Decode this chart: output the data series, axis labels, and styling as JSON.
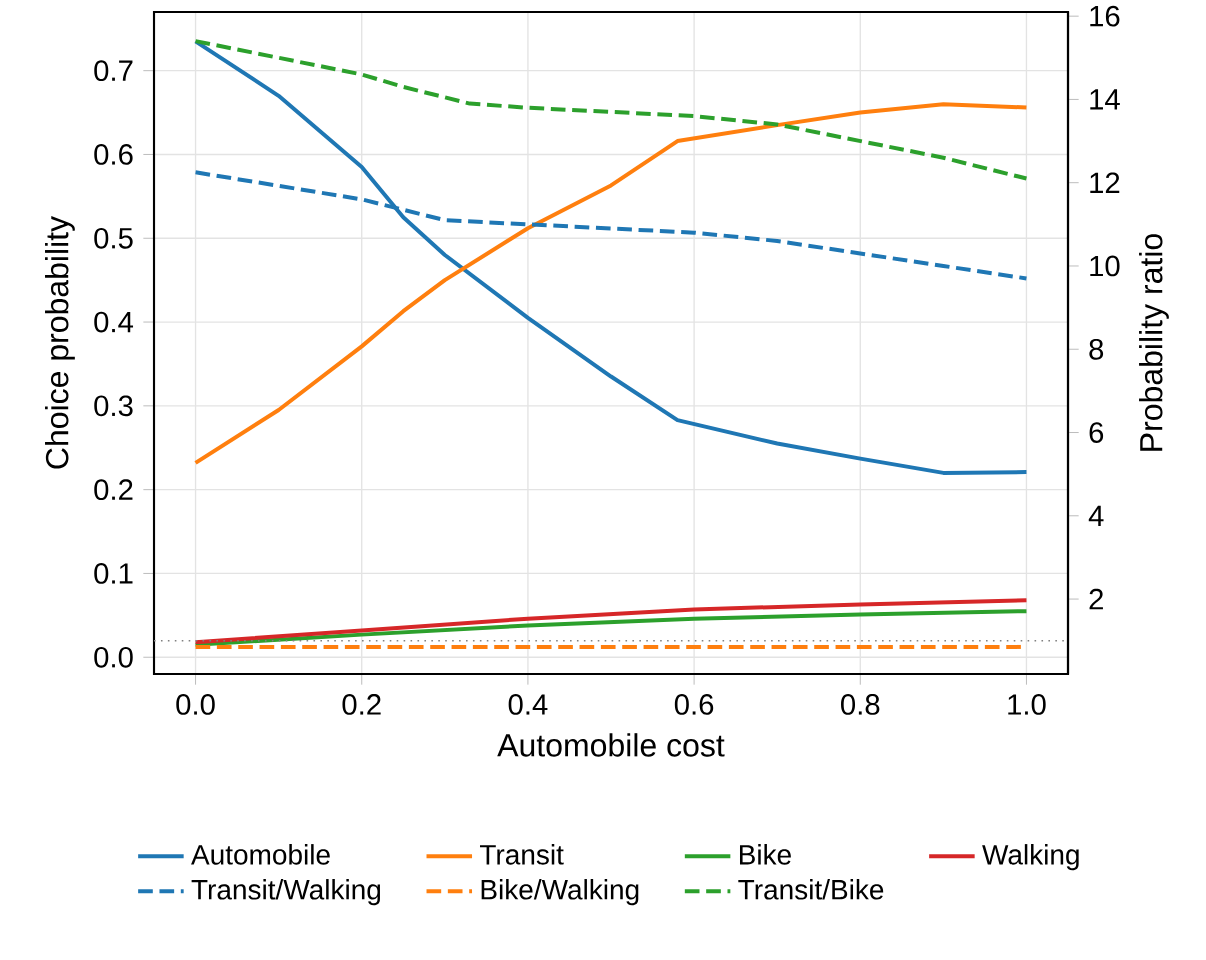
{
  "chart_data": {
    "type": "line",
    "xlabel": "Automobile cost",
    "ylabel": "Choice probability",
    "y2label": "Probability ratio",
    "xlim": [
      -0.05,
      1.05
    ],
    "ylim": [
      -0.02,
      0.77
    ],
    "y2lim": [
      0.2,
      16.1
    ],
    "xticks": [
      {
        "value": 0,
        "label": "0.0"
      },
      0.2,
      0.4,
      0.6,
      0.8,
      {
        "value": 1,
        "label": "1.0"
      }
    ],
    "yticks": [
      {
        "value": 0,
        "label": "0.0"
      },
      0.1,
      0.2,
      0.3,
      0.4,
      0.5,
      0.6,
      0.7
    ],
    "y2ticks": [
      2,
      4,
      6,
      8,
      10,
      12,
      14,
      16
    ],
    "grid": true,
    "legend": "bottom",
    "ref_lines": [
      {
        "axis": "y2",
        "value": 1,
        "color": "#808080",
        "line_style": "dotted"
      }
    ],
    "series": [
      {
        "name": "Automobile",
        "color": "#1f77b4",
        "line_style": "solid",
        "x": [
          0,
          0.1,
          0.2,
          0.25,
          0.3,
          0.4,
          0.5,
          0.58,
          0.7,
          0.8,
          0.9,
          1.0
        ],
        "values": [
          0.735,
          0.67,
          0.585,
          0.525,
          0.48,
          0.405,
          0.335,
          0.283,
          0.255,
          0.237,
          0.22,
          0.221
        ]
      },
      {
        "name": "Transit",
        "color": "#ff7f0e",
        "line_style": "solid",
        "x": [
          0,
          0.1,
          0.2,
          0.25,
          0.3,
          0.4,
          0.5,
          0.58,
          0.7,
          0.8,
          0.9,
          1.0
        ],
        "values": [
          0.232,
          0.295,
          0.371,
          0.413,
          0.45,
          0.512,
          0.563,
          0.616,
          0.635,
          0.65,
          0.66,
          0.656
        ]
      },
      {
        "name": "Bike",
        "color": "#2ca02c",
        "line_style": "solid",
        "x": [
          0,
          0.2,
          0.4,
          0.6,
          0.8,
          1.0
        ],
        "values": [
          0.015,
          0.027,
          0.038,
          0.046,
          0.051,
          0.055
        ]
      },
      {
        "name": "Walking",
        "color": "#d62728",
        "line_style": "solid",
        "x": [
          0,
          0.2,
          0.4,
          0.6,
          0.8,
          1.0
        ],
        "values": [
          0.018,
          0.032,
          0.046,
          0.057,
          0.063,
          0.068
        ]
      },
      {
        "name": "Transit/Walking",
        "color": "#1f77b4",
        "line_style": "dashed",
        "axis": "y2",
        "x": [
          0,
          0.2,
          0.3,
          0.4,
          0.6,
          0.7,
          0.8,
          0.9,
          1.0
        ],
        "values": [
          12.25,
          11.6,
          11.1,
          11.0,
          10.8,
          10.6,
          10.3,
          10.0,
          9.7
        ]
      },
      {
        "name": "Bike/Walking",
        "color": "#ff7f0e",
        "line_style": "dashed",
        "axis": "y2",
        "x": [
          0,
          0.2,
          0.4,
          0.6,
          0.8,
          1.0
        ],
        "values": [
          0.85,
          0.85,
          0.85,
          0.85,
          0.85,
          0.85
        ]
      },
      {
        "name": "Transit/Bike",
        "color": "#2ca02c",
        "line_style": "dashed",
        "axis": "y2",
        "x": [
          0,
          0.2,
          0.25,
          0.33,
          0.4,
          0.6,
          0.7,
          0.8,
          0.9,
          1.0
        ],
        "values": [
          15.4,
          14.6,
          14.3,
          13.9,
          13.8,
          13.6,
          13.4,
          13.0,
          12.6,
          12.1
        ]
      }
    ]
  }
}
